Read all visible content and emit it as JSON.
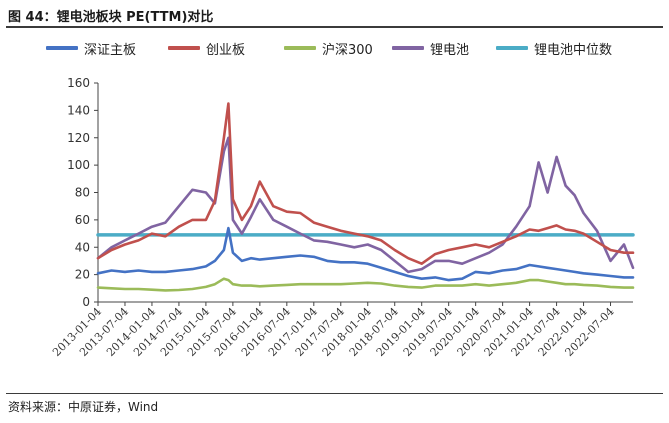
{
  "header": {
    "title": "图 44：锂电池板块 PE(TTM)对比"
  },
  "footer": {
    "source": "资料来源：中原证券，Wind"
  },
  "colors": {
    "csi_board": "#4472C4",
    "chinext": "#C0504D",
    "hs300": "#9BBB59",
    "lithium": "#8064A2",
    "median": "#4BACC6"
  },
  "chart_data": {
    "type": "line",
    "title": "图 44：锂电池板块 PE(TTM)对比",
    "xlabel": "",
    "ylabel": "",
    "ylim": [
      0,
      160
    ],
    "yticks": [
      0,
      20,
      40,
      60,
      80,
      100,
      120,
      140,
      160
    ],
    "x_tick_labels": [
      "2013-01-04",
      "2013-07-04",
      "2014-01-04",
      "2014-07-04",
      "2015-01-04",
      "2015-07-04",
      "2016-01-04",
      "2016-07-04",
      "2017-01-04",
      "2017-07-04",
      "2018-01-04",
      "2018-07-04",
      "2019-01-04",
      "2019-07-04",
      "2020-01-04",
      "2020-07-04",
      "2021-01-04",
      "2021-07-04",
      "2022-01-04",
      "2022-07-04"
    ],
    "x": [
      "2013-01",
      "2013-04",
      "2013-07",
      "2013-10",
      "2014-01",
      "2014-04",
      "2014-07",
      "2014-10",
      "2015-01",
      "2015-03",
      "2015-05",
      "2015-06",
      "2015-07",
      "2015-09",
      "2015-11",
      "2016-01",
      "2016-04",
      "2016-07",
      "2016-10",
      "2017-01",
      "2017-04",
      "2017-07",
      "2017-10",
      "2018-01",
      "2018-04",
      "2018-07",
      "2018-10",
      "2019-01",
      "2019-04",
      "2019-07",
      "2019-10",
      "2020-01",
      "2020-04",
      "2020-07",
      "2020-10",
      "2021-01",
      "2021-03",
      "2021-05",
      "2021-07",
      "2021-09",
      "2021-11",
      "2022-01",
      "2022-04",
      "2022-07",
      "2022-10",
      "2022-12"
    ],
    "series": [
      {
        "name": "深证主板",
        "color_key": "csi_board",
        "values": [
          21,
          23,
          22,
          23,
          22,
          22,
          23,
          24,
          26,
          30,
          38,
          54,
          36,
          30,
          32,
          31,
          32,
          33,
          34,
          33,
          30,
          29,
          29,
          28,
          25,
          22,
          19,
          17,
          18,
          16,
          17,
          22,
          21,
          23,
          24,
          27,
          26,
          25,
          24,
          23,
          22,
          21,
          20,
          19,
          18,
          18
        ]
      },
      {
        "name": "创业板",
        "color_key": "chinext",
        "values": [
          32,
          38,
          42,
          45,
          50,
          48,
          55,
          60,
          60,
          74,
          120,
          145,
          75,
          60,
          70,
          88,
          70,
          66,
          65,
          58,
          55,
          52,
          50,
          48,
          45,
          38,
          32,
          28,
          35,
          38,
          40,
          42,
          40,
          44,
          48,
          53,
          52,
          54,
          56,
          53,
          52,
          50,
          44,
          38,
          36,
          36
        ]
      },
      {
        "name": "沪深300",
        "color_key": "hs300",
        "values": [
          10.5,
          10,
          9.5,
          9.5,
          9,
          8.5,
          8.8,
          9.5,
          11,
          13,
          17,
          16,
          13,
          12,
          12,
          11.5,
          12,
          12.5,
          13,
          13,
          13,
          13,
          13.5,
          14,
          13.5,
          12,
          11,
          10.5,
          12,
          12,
          12,
          13,
          12,
          13,
          14,
          16,
          16,
          15,
          14,
          13,
          13,
          12.5,
          12,
          11,
          10.5,
          10.5
        ]
      },
      {
        "name": "锂电池",
        "color_key": "lithium",
        "values": [
          32,
          40,
          45,
          50,
          55,
          58,
          70,
          82,
          80,
          72,
          110,
          120,
          60,
          50,
          62,
          75,
          60,
          55,
          50,
          45,
          44,
          42,
          40,
          42,
          38,
          30,
          22,
          24,
          30,
          30,
          28,
          32,
          36,
          42,
          55,
          70,
          102,
          80,
          106,
          85,
          78,
          65,
          52,
          30,
          42,
          25
        ]
      },
      {
        "name": "锂电池中位数",
        "color_key": "median",
        "values": [
          49,
          49,
          49,
          49,
          49,
          49,
          49,
          49,
          49,
          49,
          49,
          49,
          49,
          49,
          49,
          49,
          49,
          49,
          49,
          49,
          49,
          49,
          49,
          49,
          49,
          49,
          49,
          49,
          49,
          49,
          49,
          49,
          49,
          49,
          49,
          49,
          49,
          49,
          49,
          49,
          49,
          49,
          49,
          49,
          49,
          49
        ]
      }
    ],
    "legend_position": "top",
    "grid": false
  }
}
